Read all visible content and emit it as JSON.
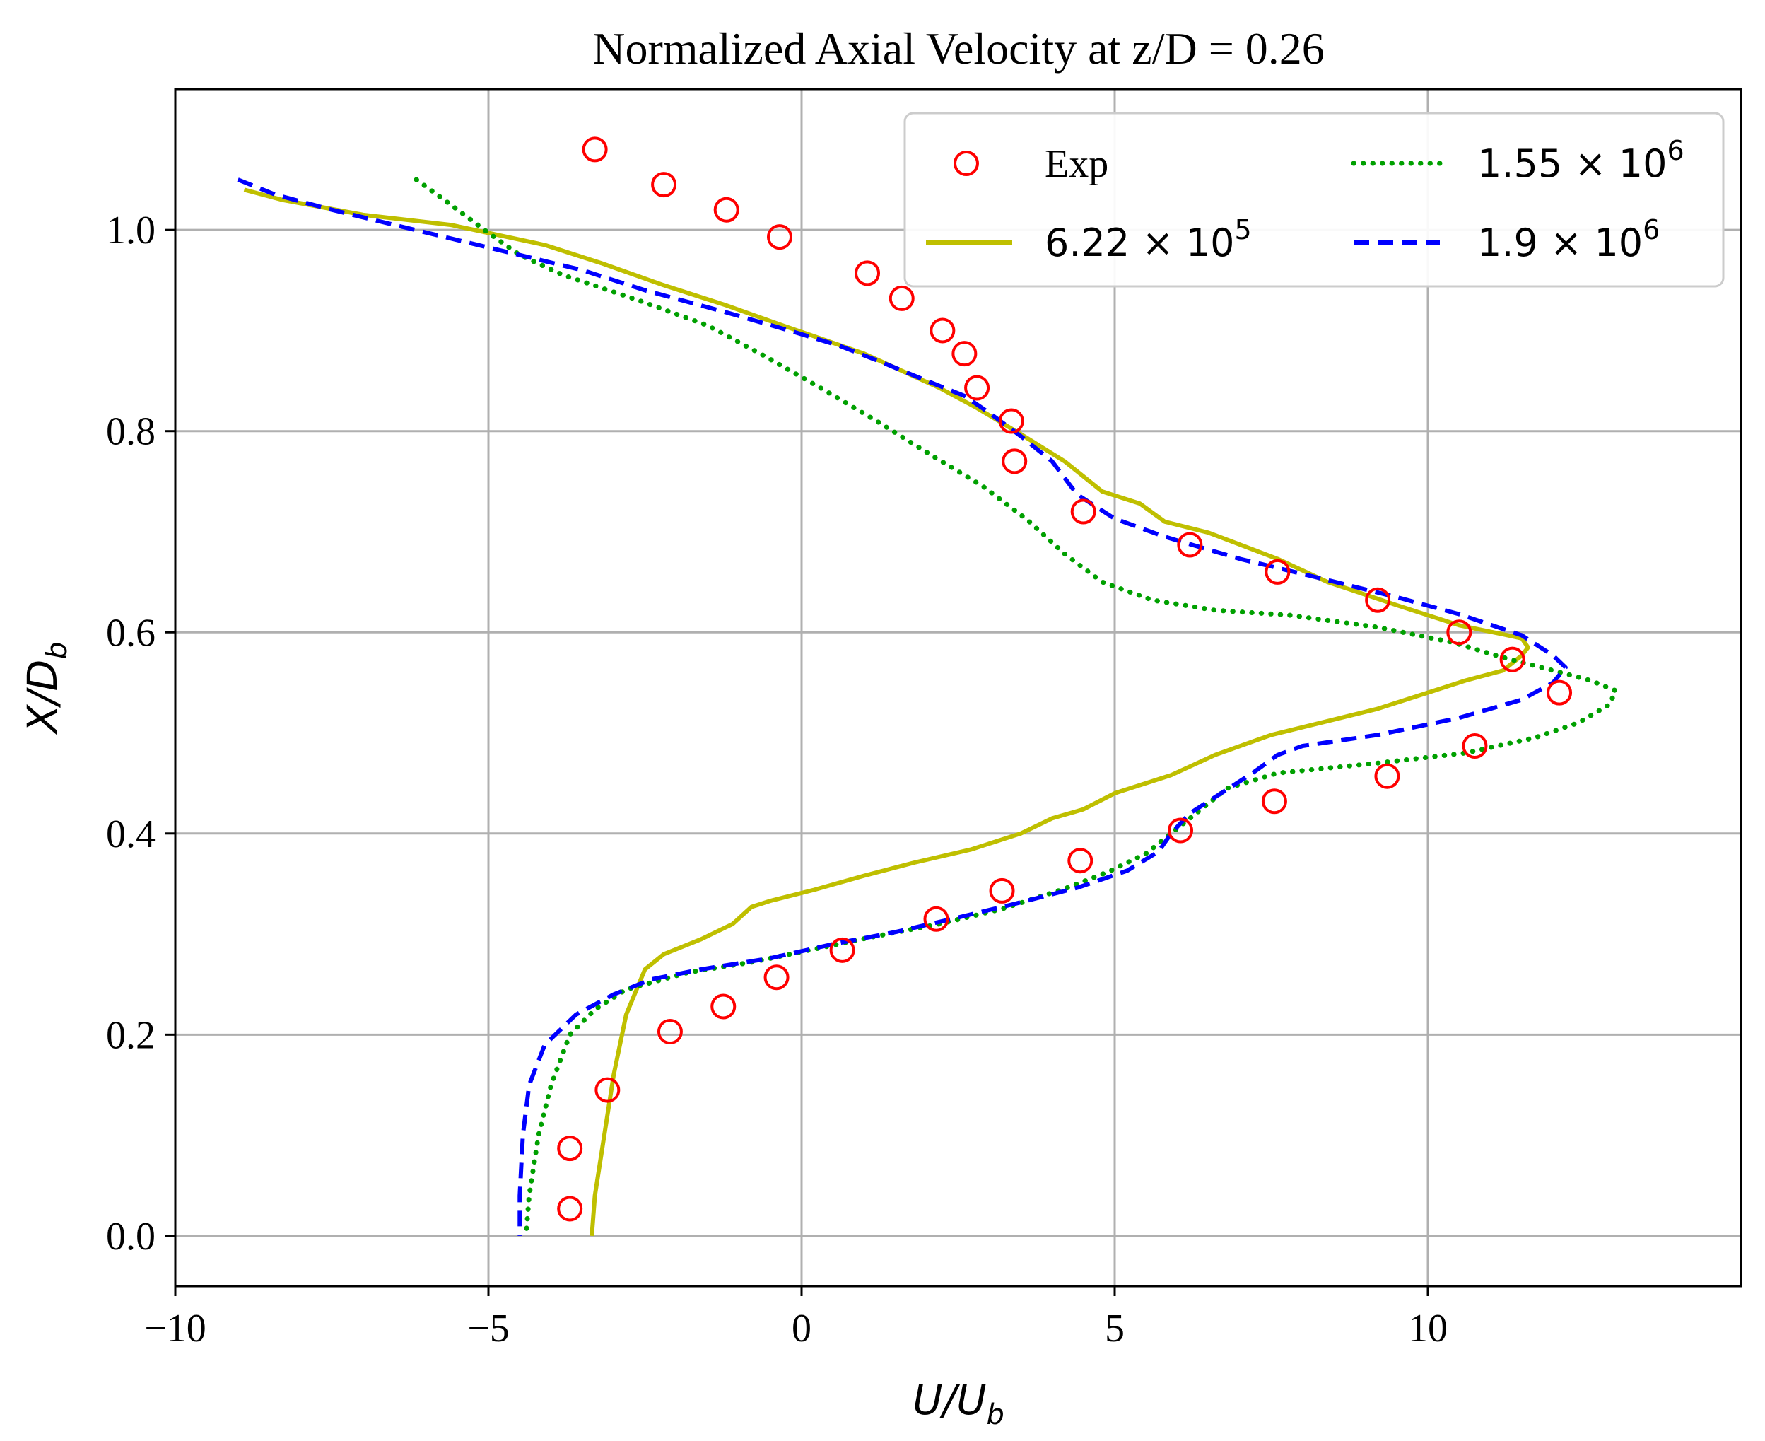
{
  "chart_data": {
    "type": "line",
    "title": "Normalized Axial Velocity at z/D = 0.26",
    "xlabel": {
      "base": "U/U",
      "sub": "b"
    },
    "ylabel": {
      "base": "X/D",
      "sub": "b"
    },
    "xlim": [
      -10,
      15
    ],
    "ylim": [
      -0.05,
      1.14
    ],
    "xticks": [
      -10,
      -5,
      0,
      5,
      10
    ],
    "xtick_labels": [
      "−10",
      "−5",
      "0",
      "5",
      "10"
    ],
    "yticks": [
      0.0,
      0.2,
      0.4,
      0.6,
      0.8,
      1.0
    ],
    "ytick_labels": [
      "0.0",
      "0.2",
      "0.4",
      "0.6",
      "0.8",
      "1.0"
    ],
    "grid": true,
    "legend_position": "top-right",
    "series": [
      {
        "name": "Exp",
        "legend": {
          "text": "Exp"
        },
        "kind": "marker",
        "color": "#ff0000",
        "points": [
          [
            -3.3,
            1.08
          ],
          [
            -2.2,
            1.045
          ],
          [
            -1.2,
            1.02
          ],
          [
            -0.35,
            0.993
          ],
          [
            1.05,
            0.957
          ],
          [
            1.6,
            0.932
          ],
          [
            2.25,
            0.9
          ],
          [
            2.6,
            0.877
          ],
          [
            2.8,
            0.843
          ],
          [
            3.35,
            0.81
          ],
          [
            3.4,
            0.77
          ],
          [
            4.5,
            0.72
          ],
          [
            6.2,
            0.687
          ],
          [
            7.6,
            0.66
          ],
          [
            9.2,
            0.632
          ],
          [
            10.5,
            0.6
          ],
          [
            11.35,
            0.573
          ],
          [
            12.1,
            0.54
          ],
          [
            10.75,
            0.487
          ],
          [
            9.35,
            0.457
          ],
          [
            7.55,
            0.432
          ],
          [
            6.05,
            0.403
          ],
          [
            4.45,
            0.373
          ],
          [
            3.2,
            0.343
          ],
          [
            2.15,
            0.315
          ],
          [
            0.65,
            0.284
          ],
          [
            -0.4,
            0.257
          ],
          [
            -1.25,
            0.228
          ],
          [
            -2.1,
            0.203
          ],
          [
            -3.1,
            0.145
          ],
          [
            -3.7,
            0.087
          ],
          [
            -3.7,
            0.027
          ]
        ]
      },
      {
        "name": "6.22e5",
        "legend": {
          "base": "6.22 × 10",
          "exp": "5"
        },
        "kind": "solid",
        "color": "#bfbf00",
        "points": [
          [
            -8.9,
            1.04
          ],
          [
            -8.3,
            1.03
          ],
          [
            -7.0,
            1.015
          ],
          [
            -5.6,
            1.005
          ],
          [
            -5.0,
            0.997
          ],
          [
            -4.1,
            0.985
          ],
          [
            -3.2,
            0.967
          ],
          [
            -2.2,
            0.945
          ],
          [
            -1.2,
            0.925
          ],
          [
            -0.3,
            0.905
          ],
          [
            0.4,
            0.89
          ],
          [
            1.0,
            0.877
          ],
          [
            1.6,
            0.86
          ],
          [
            2.2,
            0.843
          ],
          [
            2.8,
            0.823
          ],
          [
            3.5,
            0.797
          ],
          [
            4.2,
            0.77
          ],
          [
            4.8,
            0.74
          ],
          [
            5.4,
            0.728
          ],
          [
            5.8,
            0.71
          ],
          [
            6.5,
            0.699
          ],
          [
            7.6,
            0.673
          ],
          [
            8.4,
            0.65
          ],
          [
            9.5,
            0.627
          ],
          [
            10.5,
            0.607
          ],
          [
            11.2,
            0.598
          ],
          [
            11.5,
            0.594
          ],
          [
            11.6,
            0.585
          ],
          [
            11.5,
            0.577
          ],
          [
            11.2,
            0.562
          ],
          [
            10.6,
            0.552
          ],
          [
            9.2,
            0.524
          ],
          [
            7.5,
            0.498
          ],
          [
            6.6,
            0.478
          ],
          [
            5.9,
            0.458
          ],
          [
            5.0,
            0.44
          ],
          [
            4.5,
            0.424
          ],
          [
            4.0,
            0.415
          ],
          [
            3.5,
            0.4
          ],
          [
            2.7,
            0.384
          ],
          [
            1.8,
            0.371
          ],
          [
            1.0,
            0.358
          ],
          [
            0.2,
            0.344
          ],
          [
            -0.5,
            0.333
          ],
          [
            -0.8,
            0.327
          ],
          [
            -1.1,
            0.31
          ],
          [
            -1.6,
            0.295
          ],
          [
            -2.2,
            0.28
          ],
          [
            -2.5,
            0.265
          ],
          [
            -2.6,
            0.25
          ],
          [
            -2.8,
            0.22
          ],
          [
            -3.0,
            0.16
          ],
          [
            -3.15,
            0.1
          ],
          [
            -3.3,
            0.04
          ],
          [
            -3.35,
            0.0
          ]
        ]
      },
      {
        "name": "1.55e6",
        "legend": {
          "base": "1.55 × 10",
          "exp": "6"
        },
        "kind": "dotted",
        "color": "#00a000",
        "points": [
          [
            -6.15,
            1.05
          ],
          [
            -5.6,
            1.025
          ],
          [
            -5.0,
            0.997
          ],
          [
            -4.5,
            0.975
          ],
          [
            -3.8,
            0.955
          ],
          [
            -2.6,
            0.93
          ],
          [
            -1.5,
            0.905
          ],
          [
            -0.6,
            0.875
          ],
          [
            0.3,
            0.843
          ],
          [
            1.2,
            0.81
          ],
          [
            2.1,
            0.775
          ],
          [
            2.9,
            0.745
          ],
          [
            3.6,
            0.712
          ],
          [
            4.2,
            0.678
          ],
          [
            4.8,
            0.65
          ],
          [
            5.6,
            0.632
          ],
          [
            6.6,
            0.622
          ],
          [
            7.8,
            0.617
          ],
          [
            9.2,
            0.605
          ],
          [
            10.4,
            0.59
          ],
          [
            11.2,
            0.575
          ],
          [
            12.0,
            0.562
          ],
          [
            12.6,
            0.552
          ],
          [
            13.0,
            0.542
          ],
          [
            12.9,
            0.528
          ],
          [
            12.4,
            0.51
          ],
          [
            11.7,
            0.495
          ],
          [
            10.6,
            0.48
          ],
          [
            9.2,
            0.47
          ],
          [
            7.6,
            0.46
          ],
          [
            6.8,
            0.445
          ],
          [
            6.3,
            0.42
          ],
          [
            5.9,
            0.4
          ],
          [
            5.5,
            0.38
          ],
          [
            4.9,
            0.362
          ],
          [
            4.2,
            0.345
          ],
          [
            3.2,
            0.325
          ],
          [
            2.2,
            0.31
          ],
          [
            1.2,
            0.298
          ],
          [
            0.2,
            0.285
          ],
          [
            -0.8,
            0.272
          ],
          [
            -1.8,
            0.262
          ],
          [
            -2.8,
            0.245
          ],
          [
            -3.3,
            0.225
          ],
          [
            -3.7,
            0.2
          ],
          [
            -4.0,
            0.15
          ],
          [
            -4.2,
            0.1
          ],
          [
            -4.35,
            0.04
          ],
          [
            -4.4,
            0.0
          ]
        ]
      },
      {
        "name": "1.9e6",
        "legend": {
          "base": "1.9 × 10",
          "exp": "6"
        },
        "kind": "dashed",
        "color": "#0000ff",
        "points": [
          [
            -9.0,
            1.05
          ],
          [
            -8.4,
            1.035
          ],
          [
            -7.5,
            1.02
          ],
          [
            -6.5,
            1.005
          ],
          [
            -5.5,
            0.99
          ],
          [
            -4.5,
            0.975
          ],
          [
            -3.5,
            0.96
          ],
          [
            -2.5,
            0.94
          ],
          [
            -1.2,
            0.918
          ],
          [
            -0.2,
            0.9
          ],
          [
            0.6,
            0.885
          ],
          [
            1.3,
            0.868
          ],
          [
            2.0,
            0.85
          ],
          [
            2.6,
            0.835
          ],
          [
            3.0,
            0.818
          ],
          [
            3.5,
            0.795
          ],
          [
            4.0,
            0.77
          ],
          [
            4.4,
            0.737
          ],
          [
            5.0,
            0.713
          ],
          [
            5.8,
            0.695
          ],
          [
            7.0,
            0.673
          ],
          [
            8.2,
            0.655
          ],
          [
            9.5,
            0.635
          ],
          [
            10.5,
            0.618
          ],
          [
            11.5,
            0.597
          ],
          [
            12.0,
            0.577
          ],
          [
            12.2,
            0.565
          ],
          [
            12.0,
            0.55
          ],
          [
            11.5,
            0.533
          ],
          [
            10.5,
            0.515
          ],
          [
            9.2,
            0.498
          ],
          [
            8.0,
            0.487
          ],
          [
            7.6,
            0.478
          ],
          [
            7.2,
            0.46
          ],
          [
            6.7,
            0.44
          ],
          [
            6.2,
            0.42
          ],
          [
            5.9,
            0.4
          ],
          [
            5.7,
            0.382
          ],
          [
            5.2,
            0.363
          ],
          [
            4.4,
            0.346
          ],
          [
            3.4,
            0.33
          ],
          [
            2.4,
            0.315
          ],
          [
            1.5,
            0.302
          ],
          [
            0.5,
            0.29
          ],
          [
            -0.5,
            0.276
          ],
          [
            -1.6,
            0.265
          ],
          [
            -2.4,
            0.255
          ],
          [
            -3.0,
            0.24
          ],
          [
            -3.6,
            0.22
          ],
          [
            -4.1,
            0.19
          ],
          [
            -4.35,
            0.15
          ],
          [
            -4.45,
            0.1
          ],
          [
            -4.5,
            0.04
          ],
          [
            -4.5,
            0.0
          ]
        ]
      }
    ]
  }
}
